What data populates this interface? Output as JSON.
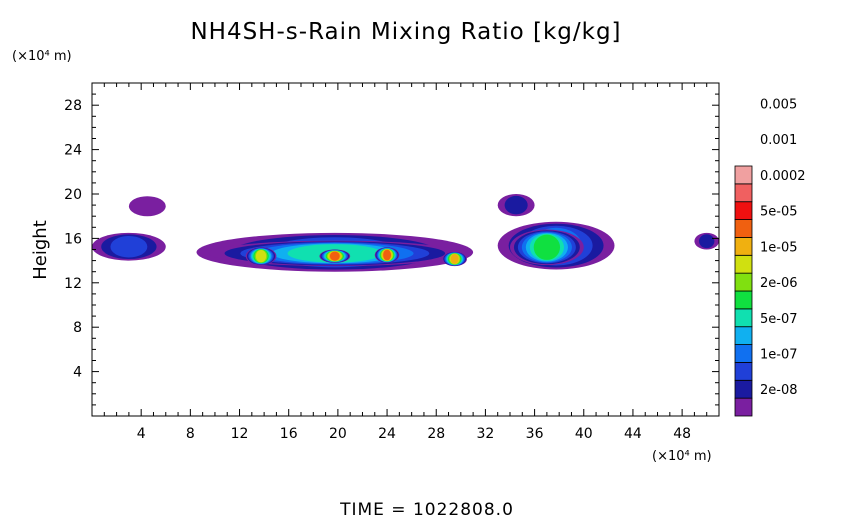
{
  "chart_data": {
    "type": "heatmap",
    "title": "NH4SH-s-Rain Mixing Ratio [kg/kg]",
    "ylabel": "Height",
    "x_unit": "(×10⁴ m)",
    "y_unit": "(×10⁴ m)",
    "xlim": [
      0,
      51
    ],
    "ylim": [
      0,
      30
    ],
    "x_ticks": [
      4,
      8,
      12,
      16,
      20,
      24,
      28,
      32,
      36,
      40,
      44,
      48
    ],
    "y_ticks": [
      4,
      8,
      12,
      16,
      20,
      24,
      28
    ],
    "footer": "TIME  =  1022808.0",
    "colorbar": {
      "colors": [
        "#7a1fa0",
        "#1a1aa0",
        "#2040d8",
        "#1070f0",
        "#10b0f0",
        "#10e0b0",
        "#10e040",
        "#80e010",
        "#d0e010",
        "#f0b010",
        "#f06010",
        "#f01010",
        "#f06060",
        "#f0a0a0"
      ],
      "labels": [
        "2e-08",
        "1e-07",
        "5e-07",
        "2e-06",
        "1e-05",
        "5e-05",
        "0.0002",
        "0.001",
        "0.005"
      ],
      "label_bands": [
        1,
        2,
        3,
        4,
        5,
        6,
        7,
        8,
        9
      ]
    },
    "features": [
      {
        "x": [
          0,
          6
        ],
        "y": [
          14,
          16.5
        ],
        "level": 2
      },
      {
        "x": [
          3,
          6
        ],
        "y": [
          18,
          19.8
        ],
        "level": 0
      },
      {
        "x": [
          8.5,
          31
        ],
        "y": [
          13,
          16.5
        ],
        "level": 2
      },
      {
        "x": [
          9.5,
          30
        ],
        "y": [
          13.5,
          15.8
        ],
        "level": 5
      },
      {
        "x": [
          12.5,
          15
        ],
        "y": [
          13.6,
          15.2
        ],
        "level": 8
      },
      {
        "x": [
          18.5,
          21
        ],
        "y": [
          13.8,
          15.0
        ],
        "level": 10
      },
      {
        "x": [
          23,
          25
        ],
        "y": [
          13.8,
          15.2
        ],
        "level": 10
      },
      {
        "x": [
          28.5,
          30.5
        ],
        "y": [
          13.5,
          14.8
        ],
        "level": 9
      },
      {
        "x": [
          33,
          42.5
        ],
        "y": [
          13.2,
          17.5
        ],
        "level": 3
      },
      {
        "x": [
          34,
          40
        ],
        "y": [
          13.6,
          16.8
        ],
        "level": 6
      },
      {
        "x": [
          33,
          36
        ],
        "y": [
          18,
          20
        ],
        "level": 1
      },
      {
        "x": [
          49,
          51
        ],
        "y": [
          15,
          16.5
        ],
        "level": 1
      }
    ]
  }
}
